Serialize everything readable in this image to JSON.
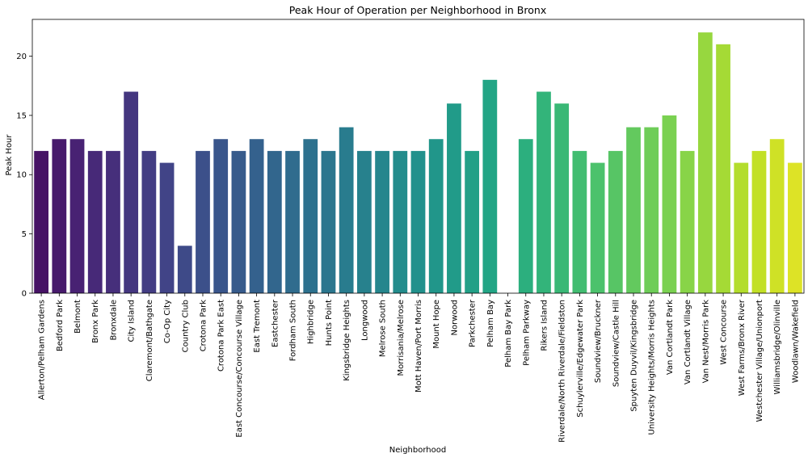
{
  "chart_data": {
    "type": "bar",
    "title": "Peak Hour of Operation per Neighborhood in Bronx",
    "xlabel": "Neighborhood",
    "ylabel": "Peak Hour",
    "ylim": [
      0,
      23.1
    ],
    "yticks": [
      0,
      5,
      10,
      15,
      20
    ],
    "grid": false,
    "palette": "viridis",
    "categories": [
      "Allerton/Pelham Gardens",
      "Bedford Park",
      "Belmont",
      "Bronx Park",
      "Bronxdale",
      "City Island",
      "Claremont/Bathgate",
      "Co-Op City",
      "Country Club",
      "Crotona Park",
      "Crotona Park East",
      "East Concourse/Concourse Village",
      "East Tremont",
      "Eastchester",
      "Fordham South",
      "Highbridge",
      "Hunts Point",
      "Kingsbridge Heights",
      "Longwood",
      "Melrose South",
      "Morrisania/Melrose",
      "Mott Haven/Port Morris",
      "Mount Hope",
      "Norwood",
      "Parkchester",
      "Pelham Bay",
      "Pelham Bay Park",
      "Pelham Parkway",
      "Rikers Island",
      "Riverdale/North Riverdale/Fieldston",
      "Schuylerville/Edgewater Park",
      "Soundview/Bruckner",
      "Soundview/Castle Hill",
      "Spuyten Duyvil/Kingsbridge",
      "University Heights/Morris Heights",
      "Van Cortlandt Park",
      "Van Cortlandt Village",
      "Van Nest/Morris Park",
      "West Concourse",
      "West Farms/Bronx River",
      "Westchester Village/Unionport",
      "Williamsbridge/Olinville",
      "Woodlawn/Wakefield"
    ],
    "values": [
      12,
      13,
      13,
      12,
      12,
      17,
      12,
      11,
      4,
      12,
      13,
      12,
      13,
      12,
      12,
      13,
      12,
      14,
      12,
      12,
      12,
      12,
      13,
      16,
      12,
      18,
      0,
      13,
      17,
      16,
      12,
      11,
      12,
      14,
      14,
      15,
      12,
      22,
      21,
      11,
      12,
      13,
      11
    ]
  }
}
